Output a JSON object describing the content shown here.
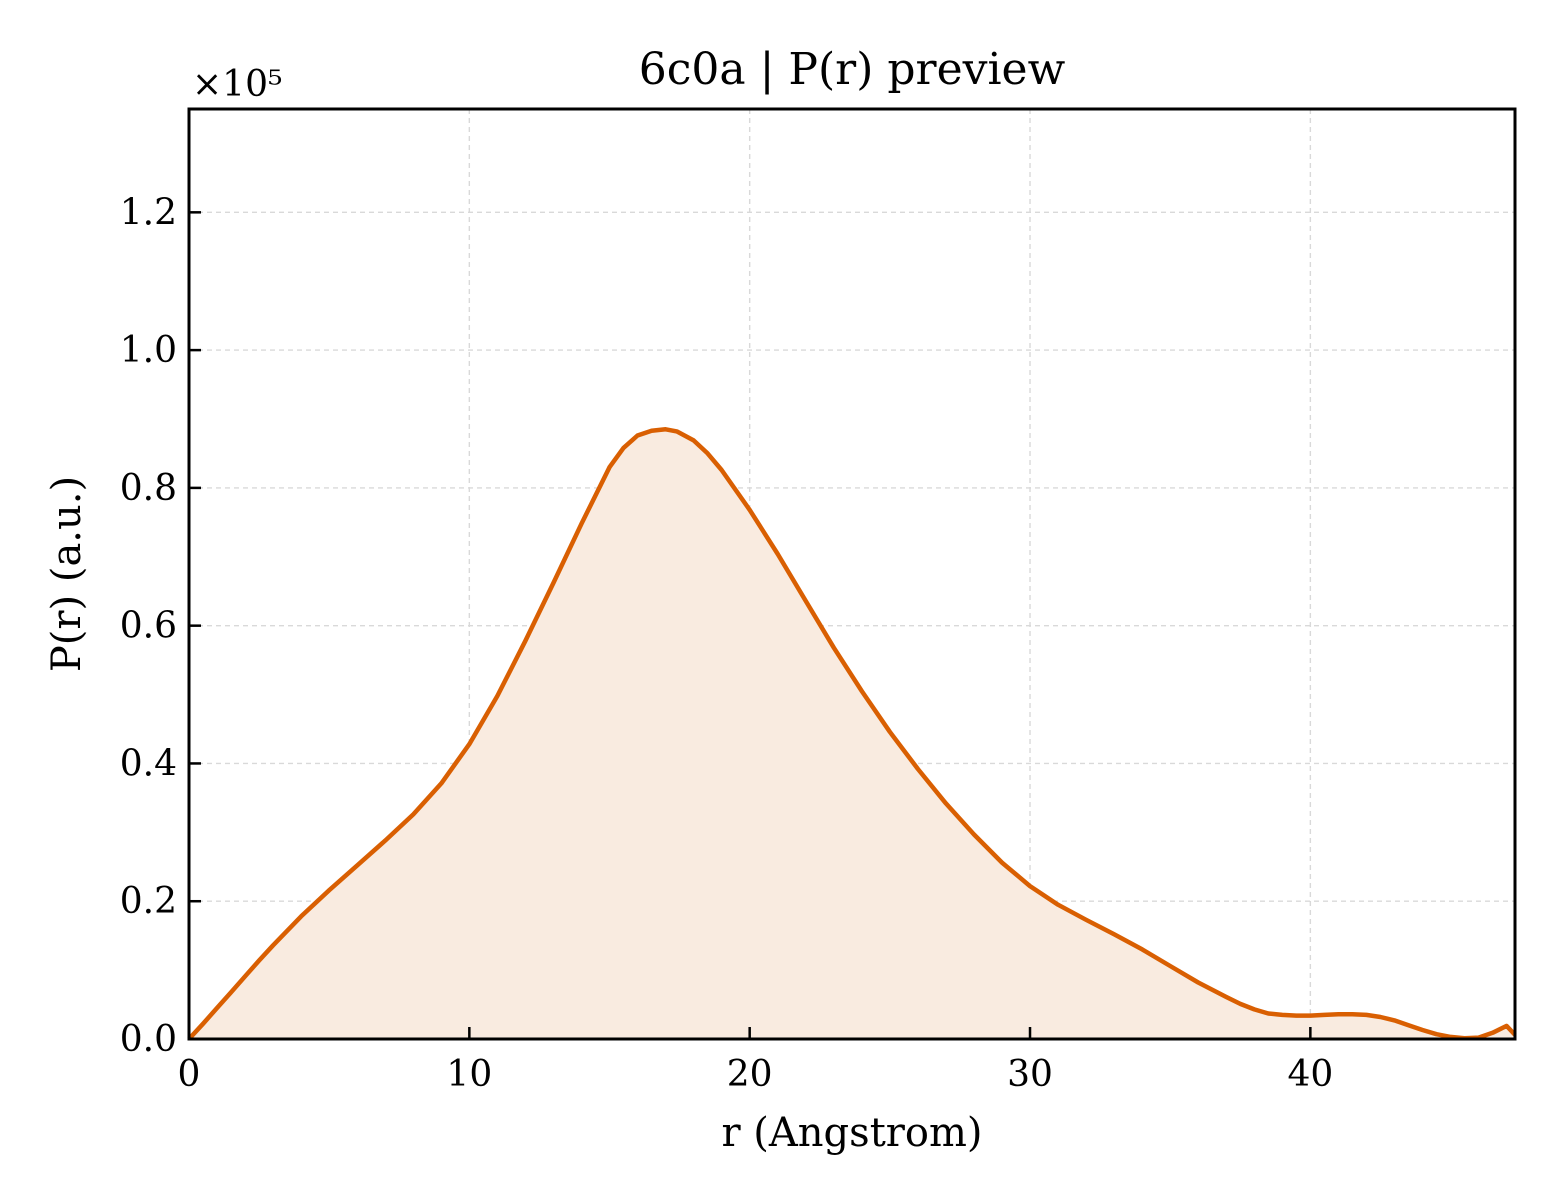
{
  "chart_data": {
    "type": "area",
    "title": "6c0a | P(r) preview",
    "xlabel": "r (Angstrom)",
    "ylabel": "P(r) (a.u.)",
    "y_multiplier_label": "×10⁵",
    "xlim": [
      0,
      47.3
    ],
    "ylim": [
      0,
      1.35
    ],
    "xticks": [
      0,
      10,
      20,
      30,
      40
    ],
    "yticks": [
      0.0,
      0.2,
      0.4,
      0.6,
      0.8,
      1.0,
      1.2
    ],
    "xtick_labels": [
      "0",
      "10",
      "20",
      "30",
      "40"
    ],
    "ytick_labels": [
      "0.0",
      "0.2",
      "0.4",
      "0.6",
      "0.8",
      "1.0",
      "1.2"
    ],
    "grid": true,
    "line_color": "#d95f02",
    "fill_color": "#f9ebe0",
    "series": [
      {
        "x": [
          0,
          0.5,
          1,
          1.5,
          2,
          2.5,
          3,
          4,
          5,
          6,
          7,
          8,
          9,
          10,
          11,
          12,
          13,
          14,
          15,
          15.5,
          16,
          16.5,
          17,
          17.4,
          18,
          18.5,
          19,
          20,
          21,
          22,
          23,
          24,
          25,
          26,
          27,
          28,
          29,
          30,
          31,
          32,
          33,
          34,
          35,
          36,
          37,
          37.5,
          38,
          38.5,
          39,
          39.5,
          40,
          40.5,
          41,
          41.5,
          42,
          42.5,
          43,
          43.5,
          44,
          44.5,
          45,
          45.5,
          46,
          46.5,
          47,
          47.3
        ],
        "y": [
          0.0,
          0.022,
          0.045,
          0.068,
          0.091,
          0.114,
          0.136,
          0.178,
          0.216,
          0.252,
          0.288,
          0.326,
          0.371,
          0.428,
          0.498,
          0.578,
          0.662,
          0.748,
          0.83,
          0.858,
          0.876,
          0.883,
          0.885,
          0.882,
          0.869,
          0.85,
          0.826,
          0.768,
          0.704,
          0.636,
          0.568,
          0.505,
          0.446,
          0.392,
          0.342,
          0.297,
          0.256,
          0.222,
          0.195,
          0.173,
          0.152,
          0.13,
          0.106,
          0.082,
          0.061,
          0.051,
          0.043,
          0.037,
          0.035,
          0.034,
          0.034,
          0.035,
          0.036,
          0.036,
          0.035,
          0.032,
          0.027,
          0.02,
          0.013,
          0.007,
          0.003,
          0.001,
          0.002,
          0.009,
          0.019,
          0.006
        ]
      }
    ]
  }
}
